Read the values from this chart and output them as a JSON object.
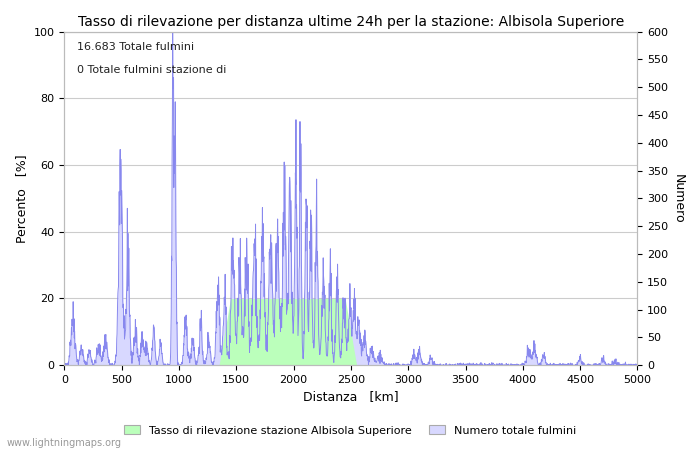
{
  "title": "Tasso di rilevazione per distanza ultime 24h per la stazione: Albisola Superiore",
  "xlabel": "Distanza   [km]",
  "ylabel_left": "Percento   [%]",
  "ylabel_right": "Numero",
  "annotation_line1": "16.683 Totale fulmini",
  "annotation_line2": "0 Totale fulmini stazione di",
  "xlim": [
    0,
    5000
  ],
  "ylim_left": [
    0,
    100
  ],
  "ylim_right": [
    0,
    600
  ],
  "xticks": [
    0,
    500,
    1000,
    1500,
    2000,
    2500,
    3000,
    3500,
    4000,
    4500,
    5000
  ],
  "yticks_left": [
    0,
    20,
    40,
    60,
    80,
    100
  ],
  "yticks_right": [
    0,
    50,
    100,
    150,
    200,
    250,
    300,
    350,
    400,
    450,
    500,
    550,
    600
  ],
  "legend_label_green": "Tasso di rilevazione stazione Albisola Superiore",
  "legend_label_blue": "Numero totale fulmini",
  "watermark": "www.lightningmaps.org",
  "line_color": "#8888ee",
  "fill_green_color": "#bbffbb",
  "fill_blue_color": "#d8d8ff",
  "background_color": "#ffffff",
  "grid_color": "#cccccc",
  "title_fontsize": 10,
  "axis_label_fontsize": 9,
  "tick_fontsize": 8,
  "annotation_fontsize": 8,
  "figsize": [
    7.0,
    4.5
  ],
  "dpi": 100
}
